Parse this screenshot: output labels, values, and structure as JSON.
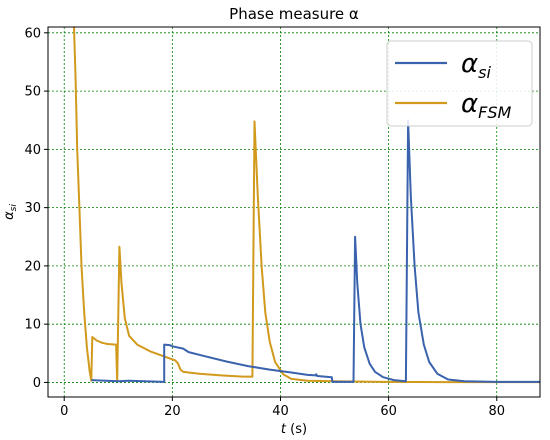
{
  "chart_data": {
    "type": "line",
    "title": "Phase measure α",
    "xlabel": "t (s)",
    "ylabel": "α_si",
    "xlim": [
      -3,
      88
    ],
    "ylim": [
      -2.5,
      61
    ],
    "xticks": [
      0,
      20,
      40,
      60,
      80
    ],
    "yticks": [
      0,
      10,
      20,
      30,
      40,
      50,
      60
    ],
    "xtick_labels": [
      "0",
      "20",
      "40",
      "60",
      "80"
    ],
    "ytick_labels": [
      "0",
      "10",
      "20",
      "30",
      "40",
      "50",
      "60"
    ],
    "grid": true,
    "grid_color": "#008000",
    "legend_position": "top-right",
    "series": [
      {
        "name": "α_si",
        "legend_main": "α",
        "legend_sub": "si",
        "color": "#3a62ad",
        "points": [
          [
            5,
            0.4
          ],
          [
            10,
            0.2
          ],
          [
            12,
            0.3
          ],
          [
            18.5,
            0.1
          ],
          [
            18.5,
            6.5
          ],
          [
            19.5,
            6.4
          ],
          [
            20,
            6.2
          ],
          [
            22,
            5.8
          ],
          [
            23,
            5.2
          ],
          [
            26,
            4.5
          ],
          [
            30,
            3.6
          ],
          [
            34,
            2.8
          ],
          [
            38,
            2.2
          ],
          [
            42,
            1.7
          ],
          [
            45,
            1.3
          ],
          [
            46.5,
            1.2
          ],
          [
            46.6,
            1.4
          ],
          [
            46.8,
            1.1
          ],
          [
            49.5,
            0.9
          ],
          [
            49.6,
            0.1
          ],
          [
            53.5,
            0.1
          ],
          [
            53.8,
            25
          ],
          [
            54.2,
            17
          ],
          [
            54.8,
            10
          ],
          [
            55.5,
            6
          ],
          [
            56.5,
            3.2
          ],
          [
            57.5,
            1.8
          ],
          [
            59,
            0.9
          ],
          [
            61,
            0.4
          ],
          [
            63.2,
            0.2
          ],
          [
            63.6,
            45
          ],
          [
            64.1,
            32
          ],
          [
            64.8,
            20
          ],
          [
            65.5,
            12
          ],
          [
            66.5,
            6.5
          ],
          [
            67.5,
            3.5
          ],
          [
            69,
            1.5
          ],
          [
            71,
            0.5
          ],
          [
            74,
            0.2
          ],
          [
            80,
            0.1
          ],
          [
            88,
            0.1
          ]
        ]
      },
      {
        "name": "α_FSM",
        "legend_main": "α",
        "legend_sub": "FSM",
        "color": "#d29a1c",
        "points": [
          [
            1.8,
            61
          ],
          [
            2.1,
            52
          ],
          [
            2.4,
            40
          ],
          [
            2.8,
            30
          ],
          [
            3.2,
            20
          ],
          [
            3.7,
            12
          ],
          [
            4.2,
            6
          ],
          [
            4.7,
            2
          ],
          [
            5,
            0.3
          ],
          [
            5.2,
            7.8
          ],
          [
            6,
            7.2
          ],
          [
            7,
            6.8
          ],
          [
            8,
            6.6
          ],
          [
            9.6,
            6.5
          ],
          [
            9.8,
            0.3
          ],
          [
            10.2,
            23.3
          ],
          [
            10.6,
            17
          ],
          [
            11.2,
            11
          ],
          [
            12,
            8
          ],
          [
            13.5,
            6.5
          ],
          [
            16,
            5.3
          ],
          [
            19,
            4.3
          ],
          [
            20.5,
            3.8
          ],
          [
            21,
            3.3
          ],
          [
            21.5,
            2.2
          ],
          [
            22,
            1.8
          ],
          [
            25,
            1.5
          ],
          [
            29,
            1.2
          ],
          [
            33,
            1.0
          ],
          [
            34.8,
            1.0
          ],
          [
            35.2,
            44.8
          ],
          [
            35.8,
            32
          ],
          [
            36.5,
            20
          ],
          [
            37.2,
            12
          ],
          [
            38,
            7
          ],
          [
            39,
            3.5
          ],
          [
            40.5,
            1.4
          ],
          [
            42,
            0.6
          ],
          [
            45,
            0.3
          ],
          [
            50,
            0.2
          ],
          [
            60,
            0.1
          ],
          [
            70,
            0.05
          ],
          [
            88,
            0.05
          ]
        ]
      }
    ]
  }
}
